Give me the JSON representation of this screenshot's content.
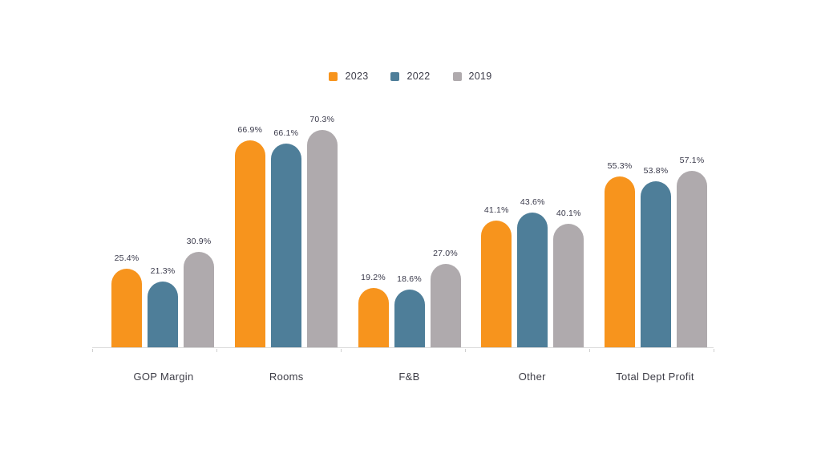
{
  "chart_data": {
    "type": "bar",
    "title": "",
    "xlabel": "",
    "ylabel": "",
    "value_suffix": "%",
    "ylim": [
      0,
      75
    ],
    "grid": false,
    "legend_position": "top",
    "categories": [
      "GOP Margin",
      "Rooms",
      "F&B",
      "Other",
      "Total Dept Profit"
    ],
    "series": [
      {
        "name": "2023",
        "color": "#F7941D",
        "values": [
          25.4,
          66.9,
          19.2,
          41.1,
          55.3
        ],
        "labels": [
          "25.4%",
          "66.9%",
          "19.2%",
          "41.1%",
          "55.3%"
        ]
      },
      {
        "name": "2022",
        "color": "#4E7E99",
        "values": [
          21.3,
          66.1,
          18.6,
          43.6,
          53.8
        ],
        "labels": [
          "21.3%",
          "66.1%",
          "18.6%",
          "43.6%",
          "53.8%"
        ]
      },
      {
        "name": "2019",
        "color": "#AFAAAD",
        "values": [
          30.9,
          70.3,
          27.0,
          40.1,
          57.1
        ],
        "labels": [
          "30.9%",
          "70.3%",
          "27.0%",
          "40.1%",
          "57.1%"
        ]
      }
    ],
    "legend": [
      {
        "label": "2023",
        "color": "#F7941D"
      },
      {
        "label": "2022",
        "color": "#4E7E99"
      },
      {
        "label": "2019",
        "color": "#AFAAAD"
      }
    ]
  }
}
